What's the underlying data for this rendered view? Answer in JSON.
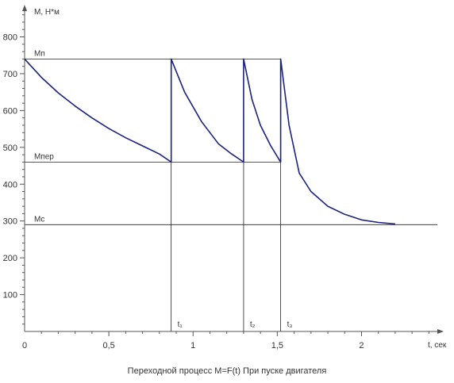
{
  "chart_data": {
    "type": "line",
    "title": "Переходной процесс M=F(t) При пуске двигателя",
    "xlabel": "t, сек",
    "ylabel": "M, H*м",
    "xlim": [
      0,
      2.45
    ],
    "ylim": [
      0,
      870
    ],
    "x_ticks": [
      0,
      0.5,
      1,
      1.5,
      2
    ],
    "x_tick_labels": [
      "0",
      "0,5",
      "1",
      "1,5",
      "2"
    ],
    "y_ticks": [
      100,
      200,
      300,
      400,
      500,
      600,
      700,
      800
    ],
    "y_tick_labels": [
      "100",
      "200",
      "300",
      "400",
      "500",
      "600",
      "700",
      "800"
    ],
    "grid": false,
    "reference_lines": [
      {
        "label": "Mп",
        "value": 740
      },
      {
        "label": "Mпер",
        "value": 460
      },
      {
        "label": "Mс",
        "value": 290
      }
    ],
    "switch_times": [
      {
        "label": "t₁",
        "x": 0.87
      },
      {
        "label": "t₂",
        "x": 1.3
      },
      {
        "label": "t₃",
        "x": 1.52
      }
    ],
    "series": [
      {
        "color": "#1a237e",
        "x": [
          0,
          0.1,
          0.2,
          0.3,
          0.4,
          0.5,
          0.6,
          0.7,
          0.8,
          0.87,
          0.87,
          0.95,
          1.05,
          1.15,
          1.22,
          1.3,
          1.3,
          1.35,
          1.4,
          1.46,
          1.52,
          1.52,
          1.57,
          1.63,
          1.7,
          1.8,
          1.9,
          2.0,
          2.1,
          2.2
        ],
        "y": [
          740,
          690,
          648,
          612,
          580,
          551,
          526,
          504,
          482,
          460,
          740,
          650,
          570,
          510,
          485,
          460,
          740,
          630,
          560,
          505,
          460,
          740,
          560,
          430,
          380,
          340,
          318,
          303,
          296,
          292
        ]
      }
    ]
  }
}
